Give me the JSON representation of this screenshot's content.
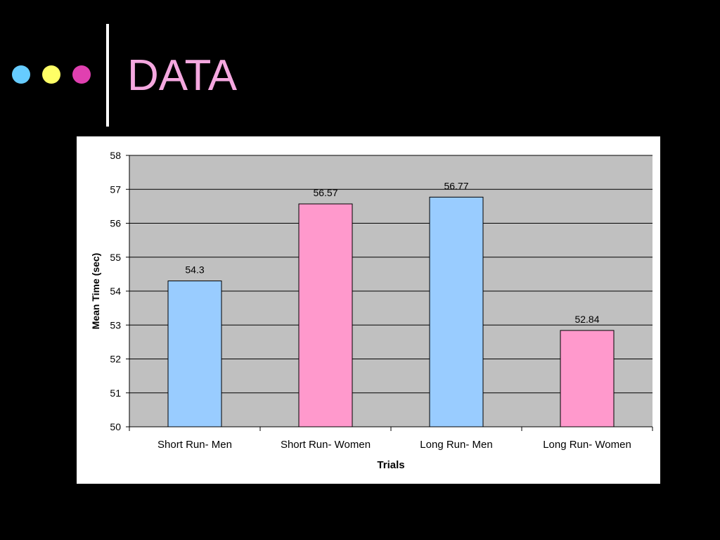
{
  "slide": {
    "title": "DATA",
    "title_color": "#f5a8e0",
    "bullets": [
      {
        "name": "blue-dot",
        "color": "#66ccff"
      },
      {
        "name": "yellow-dot",
        "color": "#ffff66"
      },
      {
        "name": "magenta-dot",
        "color": "#e040b0"
      }
    ]
  },
  "chart_data": {
    "type": "bar",
    "categories": [
      "Short Run- Men",
      "Short Run- Women",
      "Long Run- Men",
      "Long Run- Women"
    ],
    "values": [
      54.3,
      56.57,
      56.77,
      52.84
    ],
    "data_labels": [
      "54.3",
      "56.57",
      "56.77",
      "52.84"
    ],
    "bar_colors": [
      "#99ccff",
      "#ff99cc",
      "#99ccff",
      "#ff99cc"
    ],
    "title": "",
    "xlabel": "Trials",
    "ylabel": "Mean Time (sec)",
    "ylim": [
      50,
      58
    ],
    "yticks": [
      "50",
      "51",
      "52",
      "53",
      "54",
      "55",
      "56",
      "57",
      "58"
    ],
    "grid": true,
    "plot_background": "#c0c0c0"
  }
}
